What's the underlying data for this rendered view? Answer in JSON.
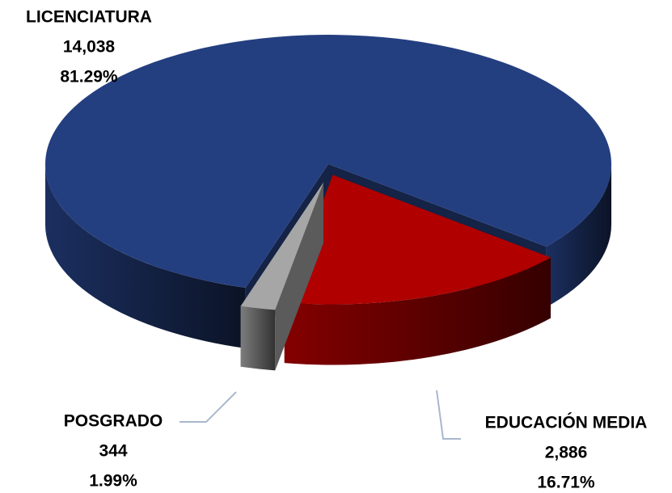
{
  "chart_data": {
    "type": "pie3d",
    "categories": [
      "LICENCIATURA",
      "EDUCACIÓN MEDIA",
      "POSGRADO"
    ],
    "values": [
      14038,
      2886,
      344
    ],
    "value_labels": [
      "14,038",
      "2,886",
      "344"
    ],
    "percent": [
      81.29,
      16.71,
      1.99
    ],
    "percent_labels": [
      "81.29%",
      "16.71%",
      "1.99%"
    ],
    "colors": [
      "#243f80",
      "#b00000",
      "#a6a6a6"
    ]
  }
}
